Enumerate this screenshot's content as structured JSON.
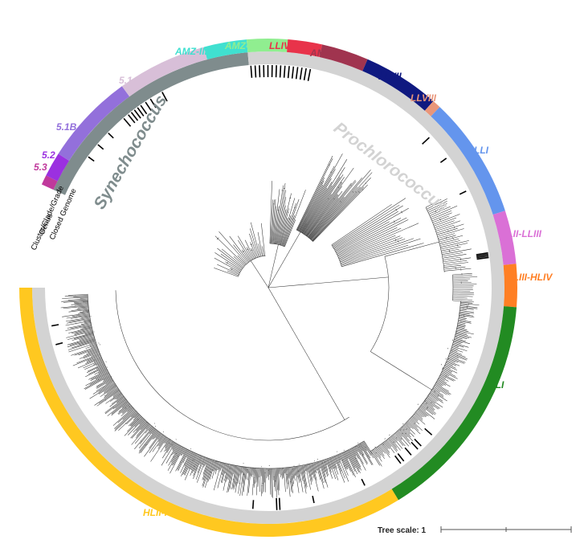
{
  "figure": {
    "genera": [
      {
        "name": "Synechococcus",
        "color": "#7f8c8d"
      },
      {
        "name": "Prochlorococcus",
        "color": "#d3d3d3"
      }
    ],
    "ring_keys": [
      "Cluster/Clade/Grade",
      "Genus",
      "Closed Genome"
    ],
    "clades": [
      {
        "label": "5.3",
        "color": "#c0399c",
        "genus": "Synechococcus"
      },
      {
        "label": "5.2",
        "color": "#9b30e0",
        "genus": "Synechococcus"
      },
      {
        "label": "5.1B",
        "color": "#9370db",
        "genus": "Synechococcus"
      },
      {
        "label": "5.1A",
        "color": "#d8bfd8",
        "genus": "Synechococcus"
      },
      {
        "label": "AMZ-III",
        "color": "#40e0d0",
        "genus": "Synechococcus"
      },
      {
        "label": "AMZ-II",
        "color": "#90ee90",
        "genus": "Prochlorococcus"
      },
      {
        "label": "LLIV",
        "color": "#e8334a",
        "genus": "Prochlorococcus"
      },
      {
        "label": "AMZ-I",
        "color": "#a0344f",
        "genus": "Prochlorococcus"
      },
      {
        "label": "LLVII",
        "color": "#0f1980",
        "genus": "Prochlorococcus"
      },
      {
        "label": "LLVIII",
        "color": "#e9967a",
        "genus": "Prochlorococcus"
      },
      {
        "label": "LLI",
        "color": "#6495ed",
        "genus": "Prochlorococcus"
      },
      {
        "label": "LLII-LLIII",
        "color": "#da70d6",
        "genus": "Prochlorococcus"
      },
      {
        "label": "HLIII-HLIV",
        "color": "#ff7f24",
        "genus": "Prochlorococcus"
      },
      {
        "label": "HLI",
        "color": "#228b22",
        "genus": "Prochlorococcus"
      },
      {
        "label": "HLII-HLVI",
        "color": "#ffc820",
        "genus": "Prochlorococcus"
      }
    ],
    "scale": {
      "label": "Tree scale: 1"
    }
  }
}
